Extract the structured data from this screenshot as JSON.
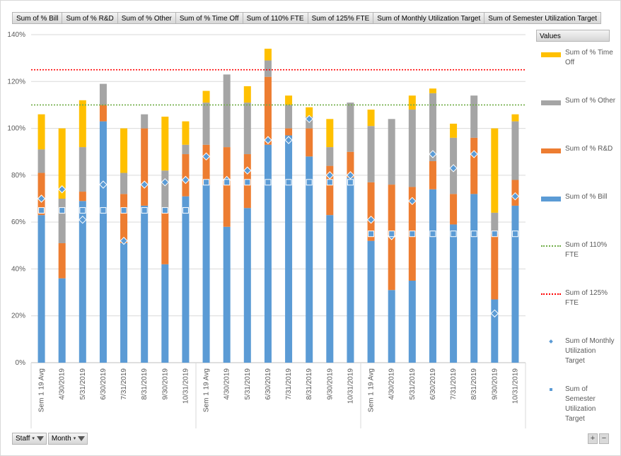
{
  "field_buttons": [
    "Sum of % Bill",
    "Sum of % R&D",
    "Sum of % Other",
    "Sum of % Time Off",
    "Sum of 110% FTE",
    "Sum of 125% FTE",
    "Sum of Monthly Utilization Target",
    "Sum of Semester Utilization Target"
  ],
  "legend_title": "Values",
  "filters": [
    "Staff",
    "Month"
  ],
  "zoom": {
    "plus": "+",
    "minus": "−"
  },
  "colors": {
    "bill": "#5b9bd5",
    "rd": "#ed7d31",
    "other": "#a5a5a5",
    "timeoff": "#ffc000",
    "fte110": "#70ad47",
    "fte125": "#ff0000",
    "monthly": "#5b9bd5",
    "semester": "#5b9bd5"
  },
  "chart_data": {
    "type": "bar",
    "stacked": true,
    "ylim": [
      0,
      140
    ],
    "y_ticks": [
      "0%",
      "20%",
      "40%",
      "60%",
      "80%",
      "100%",
      "120%",
      "140%"
    ],
    "categories": [
      "Sem 1 19 Avg",
      "4/30/2019",
      "5/31/2019",
      "6/30/2019",
      "7/31/2019",
      "8/31/2019",
      "9/30/2019",
      "10/31/2019",
      "Sem 1 19 Avg",
      "4/30/2019",
      "5/31/2019",
      "6/30/2019",
      "7/31/2019",
      "8/31/2019",
      "9/30/2019",
      "10/31/2019",
      "Sem 1 19 Avg",
      "4/30/2019",
      "5/31/2019",
      "6/30/2019",
      "7/31/2019",
      "8/31/2019",
      "9/30/2019",
      "10/31/2019"
    ],
    "series": [
      {
        "name": "Sum of % Bill",
        "color_key": "bill",
        "values": [
          63,
          36,
          69,
          103,
          51,
          67,
          42,
          71,
          76,
          58,
          66,
          93,
          97,
          88,
          63,
          79,
          52,
          31,
          35,
          74,
          59,
          72,
          27,
          67
        ]
      },
      {
        "name": "Sum of % R&D",
        "color_key": "rd",
        "values": [
          18,
          15,
          4,
          7,
          21,
          33,
          22,
          18,
          17,
          34,
          23,
          29,
          3,
          12,
          21,
          11,
          25,
          45,
          40,
          12,
          13,
          24,
          28,
          11
        ]
      },
      {
        "name": "Sum of % Other",
        "color_key": "other",
        "values": [
          10,
          19,
          19,
          9,
          9,
          6,
          18,
          4,
          18,
          31,
          22,
          7,
          10,
          5,
          8,
          21,
          24,
          28,
          33,
          29,
          24,
          18,
          9,
          25
        ]
      },
      {
        "name": "Sum of % Time Off",
        "color_key": "timeoff",
        "values": [
          15,
          30,
          20,
          0,
          19,
          0,
          23,
          10,
          5,
          0,
          7,
          5,
          4,
          4,
          12,
          0,
          7,
          0,
          6,
          2,
          6,
          0,
          36,
          3
        ]
      }
    ],
    "lines": [
      {
        "name": "Sum of 110% FTE",
        "color_key": "fte110",
        "value": 110
      },
      {
        "name": "Sum of 125% FTE",
        "color_key": "fte125",
        "value": 125
      }
    ],
    "markers": [
      {
        "name": "Sum of Monthly Utilization Target",
        "shape": "diamond",
        "color_key": "monthly",
        "values": [
          70,
          74,
          61,
          76,
          52,
          76,
          77,
          78,
          88,
          78,
          82,
          95,
          95,
          104,
          80,
          80,
          61,
          54,
          69,
          89,
          83,
          89,
          21,
          71
        ]
      },
      {
        "name": "Sum of Semester Utilization Target",
        "shape": "square",
        "color_key": "semester",
        "values": [
          65,
          65,
          65,
          65,
          65,
          65,
          65,
          65,
          77,
          77,
          77,
          77,
          77,
          77,
          77,
          77,
          55,
          55,
          55,
          55,
          55,
          55,
          55,
          55
        ]
      }
    ],
    "groups": 3,
    "legend_position": "right",
    "grid": true
  }
}
